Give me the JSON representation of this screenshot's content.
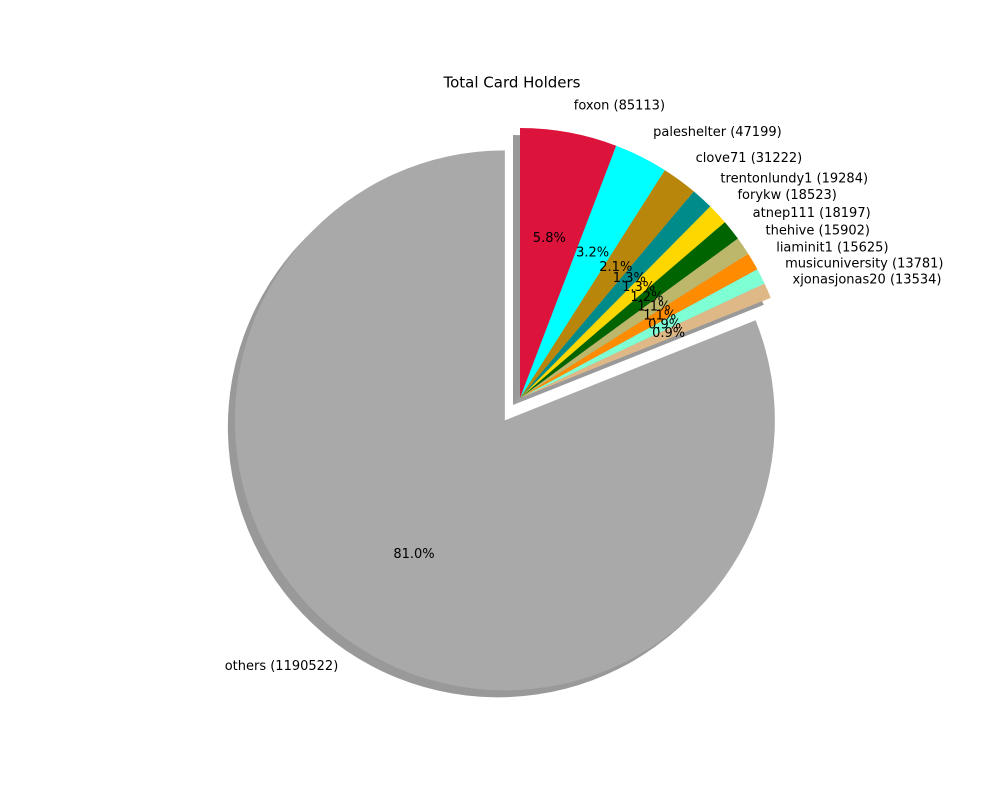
{
  "chart_data": {
    "type": "pie",
    "title": "Total Card Holders",
    "labels": [
      "others (1190522)",
      "xjonasjonas20 (13534)",
      "musicuniversity (13781)",
      "liaminit1 (15625)",
      "thehive (15902)",
      "atnep111 (18197)",
      "forykw (18523)",
      "trentonlundy1 (19284)",
      "clove71 (31222)",
      "paleshelter (47199)",
      "foxon (85113)"
    ],
    "values": [
      1190522,
      13534,
      13781,
      15625,
      15902,
      18197,
      18523,
      19284,
      31222,
      47199,
      85113
    ],
    "pct_labels": [
      "81.0%",
      "0.9%",
      "0.9%",
      "1.1%",
      "1.1%",
      "1.2%",
      "1.3%",
      "1.3%",
      "2.1%",
      "3.2%",
      "5.8%"
    ],
    "colors": [
      "#a9a9a9",
      "#deb887",
      "#7fffd4",
      "#ff8c00",
      "#bdb76b",
      "#006400",
      "#ffd700",
      "#008b8b",
      "#b8860b",
      "#00ffff",
      "#dc143c"
    ],
    "explode": [
      0.1,
      0,
      0,
      0,
      0,
      0,
      0,
      0,
      0,
      0,
      0
    ],
    "startangle": 90,
    "shadow": true
  }
}
